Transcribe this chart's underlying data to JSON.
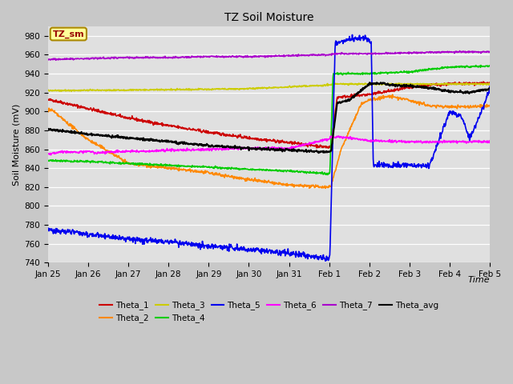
{
  "title": "TZ Soil Moisture",
  "xlabel": "Time",
  "ylabel": "Soil Moisture (mV)",
  "ylim": [
    740,
    990
  ],
  "yticks": [
    740,
    760,
    780,
    800,
    820,
    840,
    860,
    880,
    900,
    920,
    940,
    960,
    980
  ],
  "xlim_days": [
    0,
    11
  ],
  "x_tick_labels": [
    "Jan 25",
    "Jan 26",
    "Jan 27",
    "Jan 28",
    "Jan 29",
    "Jan 30",
    "Jan 31",
    "Feb 1",
    "Feb 2",
    "Feb 3",
    "Feb 4",
    "Feb 5"
  ],
  "x_tick_positions": [
    0,
    1,
    2,
    3,
    4,
    5,
    6,
    7,
    8,
    9,
    10,
    11
  ],
  "background_color": "#c8c8c8",
  "plot_bg_color": "#e0e0e0",
  "legend_box_color": "#ffff99",
  "legend_box_border": "#aa8800",
  "series": {
    "Theta_1": {
      "color": "#cc0000",
      "lw": 1.2
    },
    "Theta_2": {
      "color": "#ff8800",
      "lw": 1.2
    },
    "Theta_3": {
      "color": "#cccc00",
      "lw": 1.2
    },
    "Theta_4": {
      "color": "#00cc00",
      "lw": 1.2
    },
    "Theta_5": {
      "color": "#0000ee",
      "lw": 1.2
    },
    "Theta_6": {
      "color": "#ff00ff",
      "lw": 1.2
    },
    "Theta_7": {
      "color": "#aa00cc",
      "lw": 1.2
    },
    "Theta_avg": {
      "color": "#000000",
      "lw": 1.5
    }
  }
}
